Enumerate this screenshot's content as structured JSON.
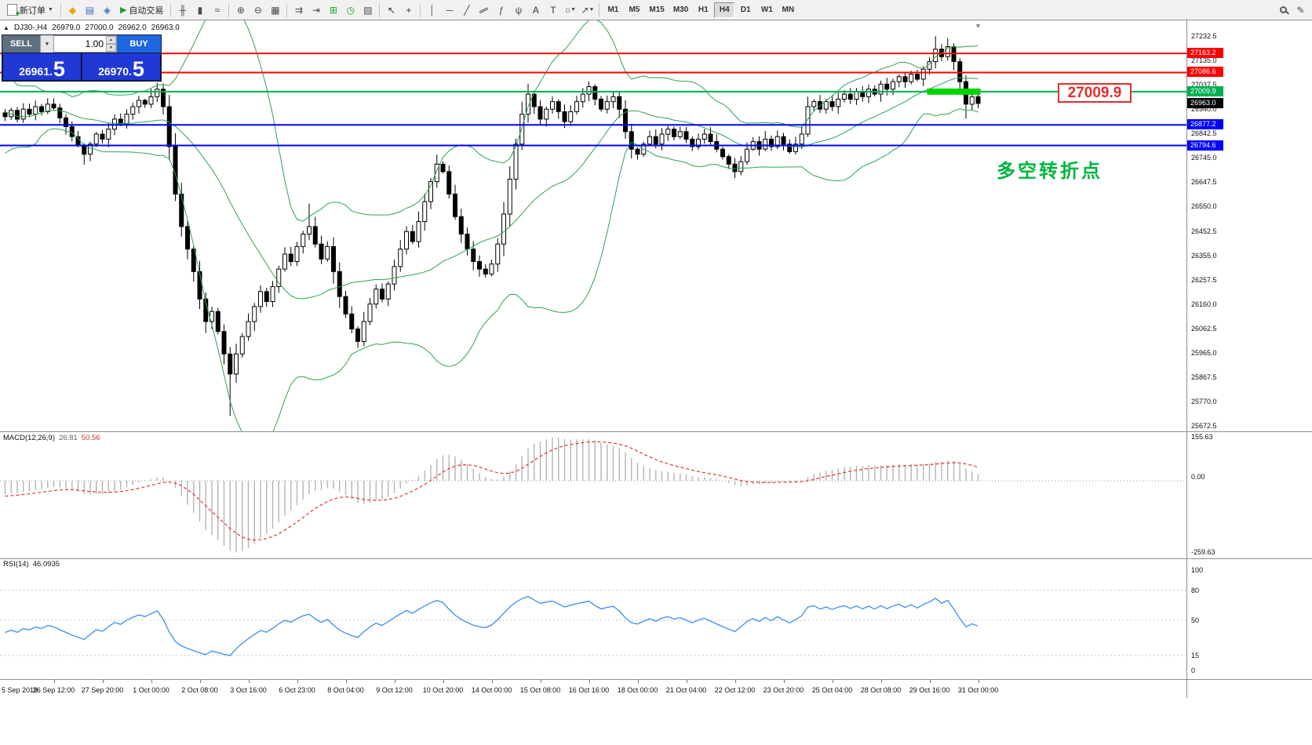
{
  "toolbar": {
    "new_order_label": "新订单",
    "autotrading_label": "自动交易",
    "timeframes": [
      "M1",
      "M5",
      "M15",
      "M30",
      "H1",
      "H4",
      "D1",
      "W1",
      "MN"
    ],
    "active_timeframe": "H4"
  },
  "icons": {
    "new_order_plus": "+",
    "caret_down": "▼",
    "metaquotes": "◆",
    "market_watch": "▤",
    "navigator": "◈",
    "autotrading_play": "▶",
    "bar_chart": "╫",
    "candle_chart": "▮",
    "line_chart": "≈",
    "zoom_in": "⊕",
    "zoom_out": "⊖",
    "tile_windows": "▦",
    "auto_scroll": "⇉",
    "chart_shift": "⇥",
    "indicators_add": "⊞",
    "periods": "◷",
    "templates": "▨",
    "cursor": "↖",
    "crosshair": "+",
    "vline": "│",
    "hline": "─",
    "trendline": "╱",
    "channel": "∥",
    "fibonacci": "ƒ",
    "pitchfork": "ψ",
    "text_tool": "A",
    "label_tool": "T",
    "shapes": "○",
    "arrows_tool": "↗",
    "edit_pencil": "✎",
    "expand_toggle": "▲",
    "shift_marker": "▼",
    "spin_up": "▲",
    "spin_down": "▼"
  },
  "chart": {
    "header": {
      "symbol_period": "DJ30-,H4",
      "open": "26979.0",
      "high": "27000.0",
      "low": "26962.0",
      "close": "26963.0"
    },
    "one_click": {
      "sell_label": "SELL",
      "buy_label": "BUY",
      "volume": "1.00",
      "sell_price_main": "26961.",
      "sell_price_big": "5",
      "buy_price_main": "26970.",
      "buy_price_big": "5"
    },
    "annotation": "多空转折点",
    "callout_price": "27009.9",
    "current_price": "26963.0",
    "hlines": [
      {
        "price": 27163.2,
        "color": "#FF0000"
      },
      {
        "price": 27086.6,
        "color": "#FF0000"
      },
      {
        "price": 27009.9,
        "color": "#00B050"
      },
      {
        "price": 26877.2,
        "color": "#0000FF"
      },
      {
        "price": 26794.6,
        "color": "#0000FF"
      }
    ],
    "green_segment": {
      "price": 27009.9,
      "from": 152,
      "to": 160
    }
  },
  "macd": {
    "label": "MACD(12,26,9)",
    "value_main": "26.81",
    "value_signal": "50.56",
    "scale": [
      "155.63",
      "0.00",
      "-259.63"
    ]
  },
  "rsi": {
    "label": "RSI(14)",
    "value": "46.0935",
    "scale": [
      100,
      80,
      50,
      15,
      0
    ],
    "levels": [
      80,
      50,
      15
    ]
  },
  "chart_data": {
    "type": "candlestick",
    "symbol": "DJ30-",
    "timeframe": "H4",
    "title": "DJ30-,H4 26979.0 27000.0 26962.0 26963.0",
    "y_axis": {
      "min": 25672.5,
      "max": 27232.5,
      "step": 97.5
    },
    "x_labels": [
      "5 Sep 2019",
      "26 Sep 12:00",
      "27 Sep 20:00",
      "1 Oct 00:00",
      "2 Oct 08:00",
      "3 Oct 16:00",
      "6 Oct 23:00",
      "8 Oct 04:00",
      "9 Oct 12:00",
      "10 Oct 20:00",
      "14 Oct 00:00",
      "15 Oct 08:00",
      "16 Oct 16:00",
      "18 Oct 00:00",
      "21 Oct 04:00",
      "22 Oct 12:00",
      "23 Oct 20:00",
      "25 Oct 04:00",
      "28 Oct 08:00",
      "29 Oct 16:00",
      "31 Oct 00:00"
    ],
    "bars_per_label": 8,
    "indicators": [
      "Bollinger Bands(20,2)",
      "MACD(12,26,9)",
      "RSI(14)"
    ],
    "pre_closes": [
      27180,
      27120,
      27060,
      26980,
      26900,
      26820,
      26760,
      26820,
      26880,
      26940,
      26990,
      27030,
      26970,
      26910,
      26860,
      26900,
      26940,
      26970,
      26930,
      26890
    ],
    "closes": [
      26910,
      26935,
      26900,
      26940,
      26920,
      26950,
      26930,
      26960,
      26945,
      26905,
      26870,
      26830,
      26795,
      26760,
      26800,
      26840,
      26820,
      26860,
      26900,
      26880,
      26920,
      26950,
      26975,
      26960,
      26990,
      27020,
      26950,
      26790,
      26600,
      26470,
      26380,
      26290,
      26180,
      26090,
      26130,
      26050,
      25960,
      25880,
      25960,
      26030,
      26090,
      26150,
      26210,
      26170,
      26230,
      26300,
      26360,
      26330,
      26390,
      26440,
      26470,
      26400,
      26340,
      26390,
      26290,
      26190,
      26120,
      26060,
      26010,
      26090,
      26160,
      26220,
      26180,
      26240,
      26310,
      26380,
      26450,
      26410,
      26490,
      26570,
      26650,
      26720,
      26690,
      26600,
      26510,
      26440,
      26380,
      26330,
      26300,
      26280,
      26320,
      26400,
      26520,
      26660,
      26800,
      26920,
      27000,
      26950,
      26900,
      26940,
      26970,
      26930,
      26890,
      26930,
      26970,
      27000,
      27030,
      26980,
      26940,
      26970,
      26990,
      26940,
      26850,
      26780,
      26760,
      26800,
      26830,
      26800,
      26840,
      26860,
      26830,
      26850,
      26820,
      26790,
      26820,
      26840,
      26810,
      26780,
      26750,
      26720,
      26690,
      26730,
      26780,
      26810,
      26780,
      26820,
      26790,
      26830,
      26800,
      26770,
      26800,
      26840,
      26950,
      26970,
      26940,
      26970,
      26950,
      26980,
      27000,
      26980,
      27010,
      26990,
      27020,
      27000,
      27040,
      27020,
      27050,
      27070,
      27050,
      27080,
      27060,
      27100,
      27130,
      27180,
      27150,
      27190,
      27130,
      27050,
      26960,
      26990,
      26963
    ],
    "wick_overrides": [
      {
        "i": 13,
        "low": 26718
      },
      {
        "i": 25,
        "high": 27046
      },
      {
        "i": 37,
        "low": 25712
      },
      {
        "i": 50,
        "high": 26562
      },
      {
        "i": 58,
        "low": 25984
      },
      {
        "i": 86,
        "high": 27042
      },
      {
        "i": 153,
        "high": 27232
      },
      {
        "i": 155,
        "high": 27224
      },
      {
        "i": 158,
        "low": 26902
      }
    ]
  }
}
